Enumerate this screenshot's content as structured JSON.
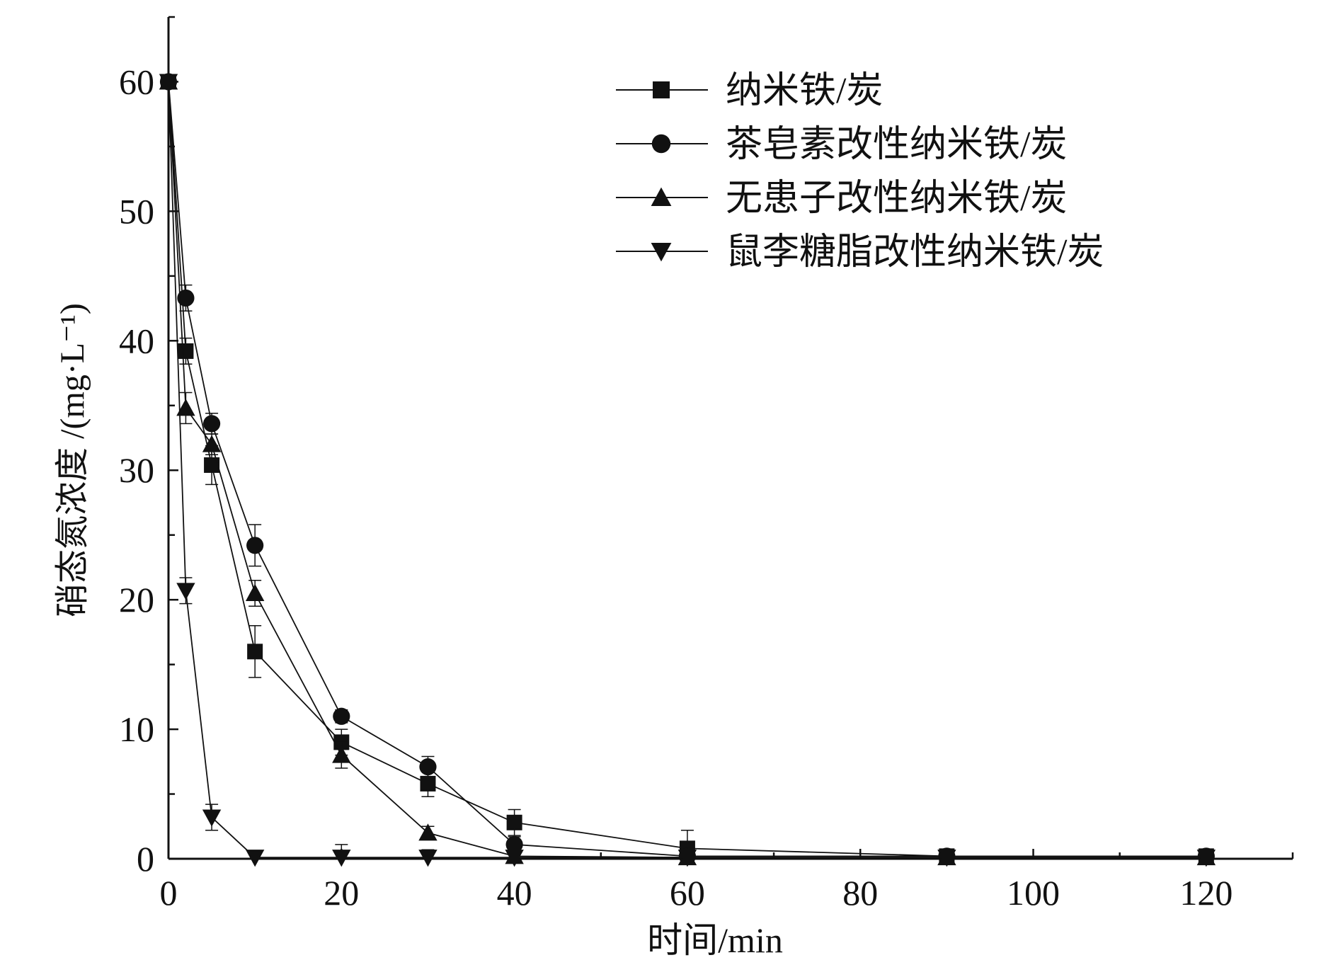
{
  "chart_data": {
    "type": "line",
    "xlabel": "时间/min",
    "ylabel": "硝态氮浓度 /(mg·L⁻¹)",
    "xlim": [
      0,
      130
    ],
    "ylim": [
      0,
      65
    ],
    "xticks": [
      0,
      20,
      40,
      60,
      80,
      100,
      120
    ],
    "yticks": [
      0,
      10,
      20,
      30,
      40,
      50,
      60
    ],
    "grid": false,
    "legend_position": "top-right",
    "x": [
      0,
      2,
      5,
      10,
      20,
      30,
      40,
      60,
      90,
      120
    ],
    "series": [
      {
        "name": "纳米铁/炭",
        "marker": "square",
        "values": [
          60,
          39.2,
          30.4,
          16,
          9,
          5.8,
          2.8,
          0.8,
          0.2,
          0.2
        ],
        "errors": [
          0.3,
          1.0,
          1.5,
          2.0,
          1.0,
          1.0,
          1.0,
          1.4,
          0.3,
          0.3
        ]
      },
      {
        "name": "茶皂素改性纳米铁/炭",
        "marker": "circle",
        "values": [
          60,
          43.3,
          33.6,
          24.2,
          11,
          7.1,
          1.1,
          0.2,
          0.2,
          0.2
        ],
        "errors": [
          0.3,
          1.0,
          0.8,
          1.6,
          0.5,
          0.8,
          0.6,
          0.3,
          0.3,
          0.3
        ]
      },
      {
        "name": "无患子改性纳米铁/炭",
        "marker": "triangle-up",
        "values": [
          60,
          34.8,
          32,
          20.5,
          8,
          2,
          0.2,
          0.1,
          0.1,
          0.1
        ],
        "errors": [
          0.3,
          1.2,
          0.8,
          1.0,
          1.0,
          0.5,
          0.3,
          0.2,
          0.2,
          0.2
        ]
      },
      {
        "name": "鼠李糖脂改性纳米铁/炭",
        "marker": "triangle-down",
        "values": [
          60,
          20.7,
          3.2,
          0.1,
          0.1,
          0.1,
          0.1,
          0.1,
          0.1,
          0.1
        ],
        "errors": [
          0.3,
          1.0,
          1.0,
          0.2,
          1.0,
          0.6,
          0.2,
          0.2,
          0.2,
          0.2
        ]
      }
    ]
  }
}
